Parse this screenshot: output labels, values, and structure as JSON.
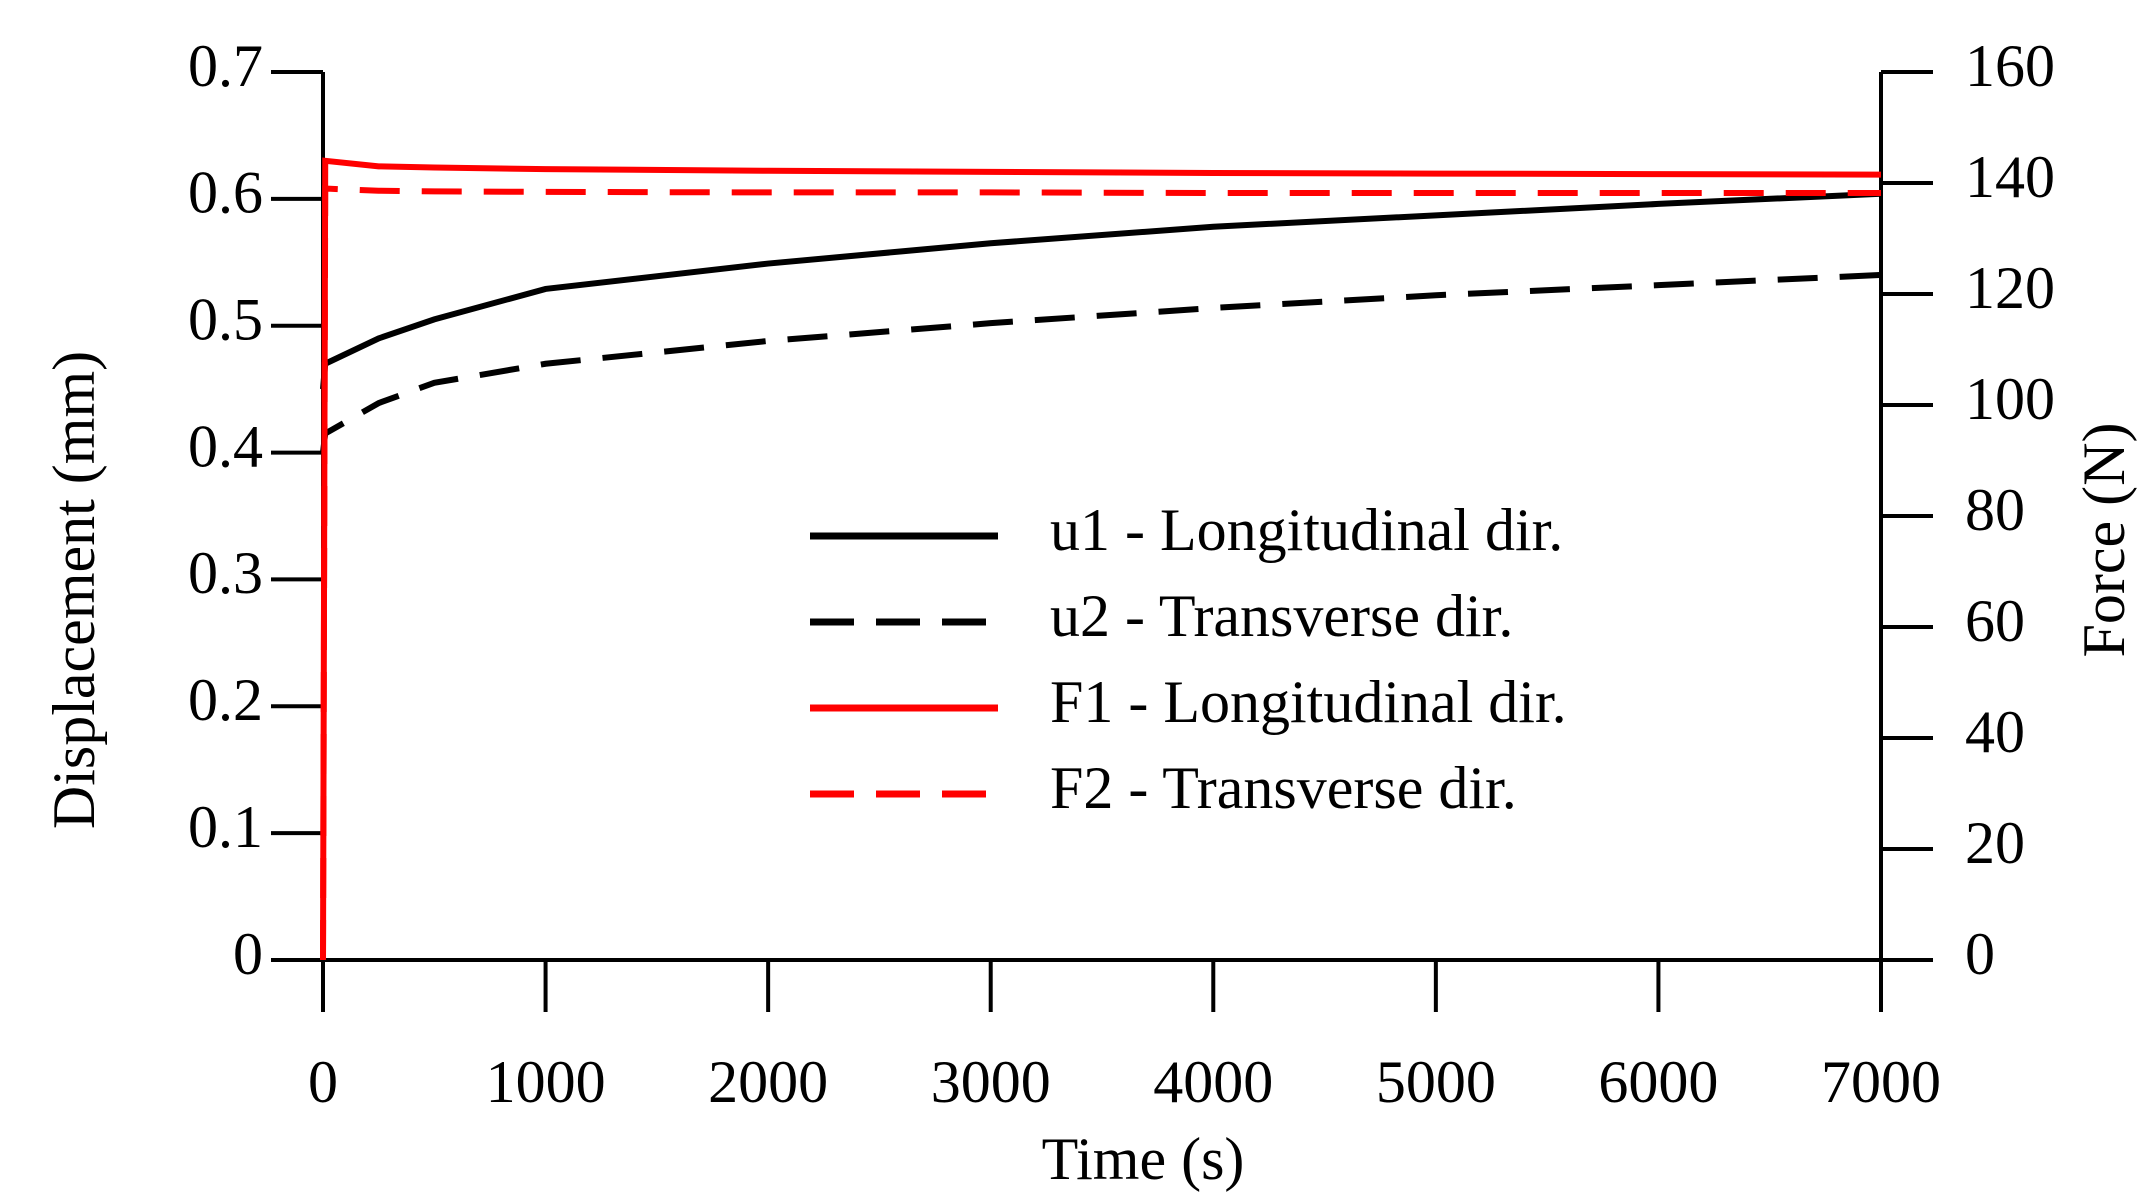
{
  "chart_data": {
    "type": "line",
    "x_label": "Time (s)",
    "y_label": "Displacement (mm)",
    "y2_label": "Force (N)",
    "x": [
      0,
      10,
      250,
      500,
      1000,
      2000,
      3000,
      4000,
      5000,
      6000,
      7000
    ],
    "series": [
      {
        "name": "u1 - Longitudinal dir.",
        "color": "#000000",
        "dash": false,
        "values": [
          0.45,
          0.47,
          0.49,
          0.505,
          0.529,
          0.549,
          0.565,
          0.578,
          0.587,
          0.596,
          0.604
        ]
      },
      {
        "name": "u2 - Transverse dir.",
        "color": "#000000",
        "dash": true,
        "values": [
          0.4,
          0.415,
          0.439,
          0.455,
          0.47,
          0.488,
          0.502,
          0.514,
          0.524,
          0.532,
          0.54
        ]
      },
      {
        "name": "F1 - Longitudinal dir.",
        "color": "#ff0000",
        "dash": false,
        "axis": "y2",
        "values": [
          0,
          144,
          143,
          142.8,
          142.5,
          142.2,
          142,
          141.8,
          141.7,
          141.6,
          141.5
        ]
      },
      {
        "name": "F2 - Transverse dir.",
        "color": "#ff0000",
        "dash": true,
        "axis": "y2",
        "values": [
          0,
          139,
          138.6,
          138.5,
          138.4,
          138.3,
          138.3,
          138.2,
          138.2,
          138.2,
          138.2
        ]
      }
    ],
    "xlim": [
      0,
      7000
    ],
    "xticks": [
      0,
      1000,
      2000,
      3000,
      4000,
      5000,
      6000,
      7000
    ],
    "ylim": [
      0,
      0.7
    ],
    "yticks": [
      0,
      0.1,
      0.2,
      0.3,
      0.4,
      0.5,
      0.6,
      0.7
    ],
    "y2lim": [
      0,
      160
    ],
    "y2ticks": [
      0,
      20,
      40,
      60,
      80,
      100,
      120,
      140,
      160
    ],
    "legend": "center right"
  }
}
